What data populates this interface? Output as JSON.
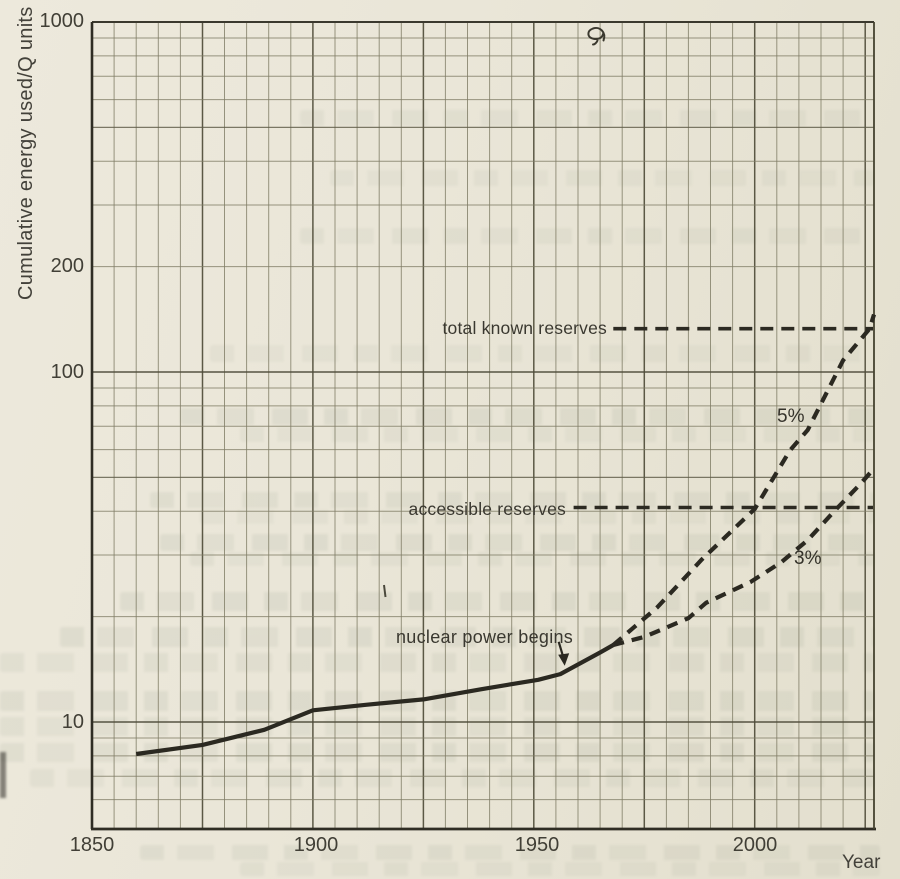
{
  "page": {
    "kind": "scanned textbook graph page",
    "paper_color": "#e9e5d7",
    "ink_color": "#2b2921",
    "grid_color": "#807d66"
  },
  "chart_data": {
    "type": "line",
    "title": "",
    "ylabel": "Cumulative energy used/Q units",
    "xlabel": "Year",
    "grid": {
      "visible": true,
      "paper": "log-linear graph paper",
      "x_minor_step_years": 5,
      "x_major_step_years": 25
    },
    "x_axis": {
      "min": 1850,
      "max": 2027,
      "tick_years": [
        1850,
        1900,
        1950,
        2000
      ],
      "tick_labels": [
        "1850",
        "1900",
        "1950",
        "2000"
      ]
    },
    "y_axis": {
      "scale": "log",
      "min": 5,
      "max": 1000,
      "tick_values": [
        1000,
        200,
        100,
        10
      ],
      "tick_labels": [
        "1000",
        "200",
        "100",
        "10"
      ]
    },
    "series": [
      {
        "name": "historical-cumulative-energy-use",
        "label": "",
        "line_style": "solid",
        "points": [
          [
            1860,
            8.1
          ],
          [
            1875,
            8.6
          ],
          [
            1889,
            9.5
          ],
          [
            1900,
            10.8
          ],
          [
            1912,
            11.2
          ],
          [
            1925,
            11.6
          ],
          [
            1938,
            12.4
          ],
          [
            1951,
            13.2
          ],
          [
            1956,
            13.7
          ],
          [
            1960,
            14.6
          ],
          [
            1965,
            15.8
          ],
          [
            1968,
            16.6
          ]
        ]
      },
      {
        "name": "five-percent-growth-projection",
        "label": "5%",
        "line_style": "dashed",
        "points": [
          [
            1968,
            16.6
          ],
          [
            1978,
            21.3
          ],
          [
            1988,
            29.1
          ],
          [
            2000,
            40.6
          ],
          [
            2008,
            59.8
          ],
          [
            2012,
            68.3
          ],
          [
            2020,
            108
          ],
          [
            2026,
            133
          ],
          [
            2027,
            146
          ]
        ]
      },
      {
        "name": "three-percent-growth-projection",
        "label": "3%",
        "line_style": "dashed",
        "points": [
          [
            1968,
            16.6
          ],
          [
            1975,
            17.5
          ],
          [
            1985,
            19.8
          ],
          [
            1989,
            21.9
          ],
          [
            1999,
            25.1
          ],
          [
            2006,
            28.6
          ],
          [
            2012,
            33.1
          ],
          [
            2018,
            40
          ],
          [
            2024,
            48
          ],
          [
            2027,
            53
          ]
        ]
      }
    ],
    "reference_lines": [
      {
        "label": "total known reserves",
        "value": 133,
        "line_style": "dashed",
        "start_year": 1968
      },
      {
        "label": "accessible reserves",
        "value": 41,
        "line_style": "dashed",
        "start_year": 1959
      }
    ],
    "annotations": [
      {
        "text": "nuclear power begins",
        "arrow_year": 1957,
        "arrow_value": 14.1
      }
    ]
  }
}
